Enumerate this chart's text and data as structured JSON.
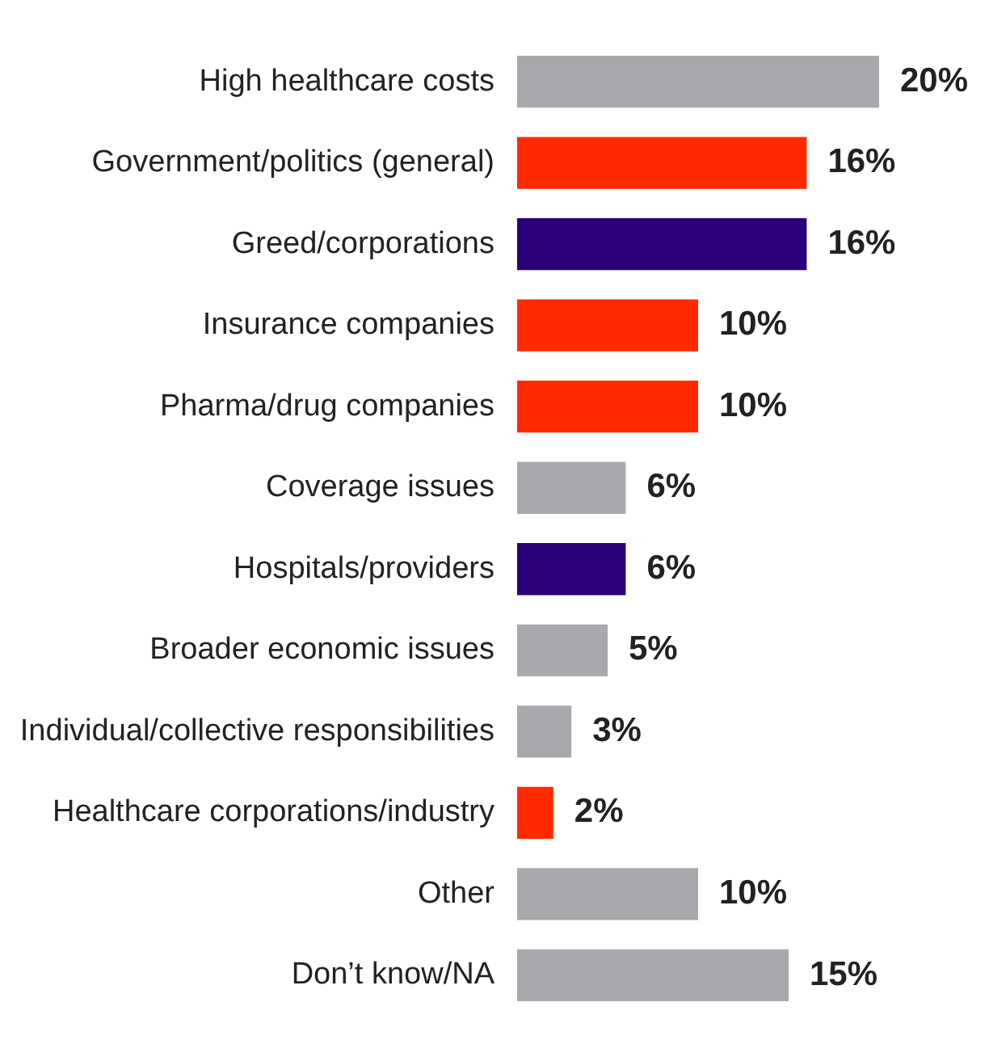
{
  "chart_data": {
    "type": "bar",
    "orientation": "horizontal",
    "categories": [
      "High healthcare costs",
      "Government/politics (general)",
      "Greed/corporations",
      "Insurance companies",
      "Pharma/drug companies",
      "Coverage issues",
      "Hospitals/providers",
      "Broader economic issues",
      "Individual/collective responsibilities",
      "Healthcare corporations/industry",
      "Other",
      "Don’t know/NA"
    ],
    "values": [
      20,
      16,
      16,
      10,
      10,
      6,
      6,
      5,
      3,
      2,
      10,
      15
    ],
    "colors": [
      "#a7a9ac",
      "#ff2a00",
      "#29007a",
      "#ff2a00",
      "#ff2a00",
      "#a7a9ac",
      "#29007a",
      "#a7a9ac",
      "#a7a9ac",
      "#ff2a00",
      "#a7a9ac",
      "#a7a9ac"
    ],
    "value_labels": [
      "20%",
      "16%",
      "16%",
      "10%",
      "10%",
      "6%",
      "6%",
      "5%",
      "3%",
      "2%",
      "10%",
      "15%"
    ],
    "legend": false
  }
}
